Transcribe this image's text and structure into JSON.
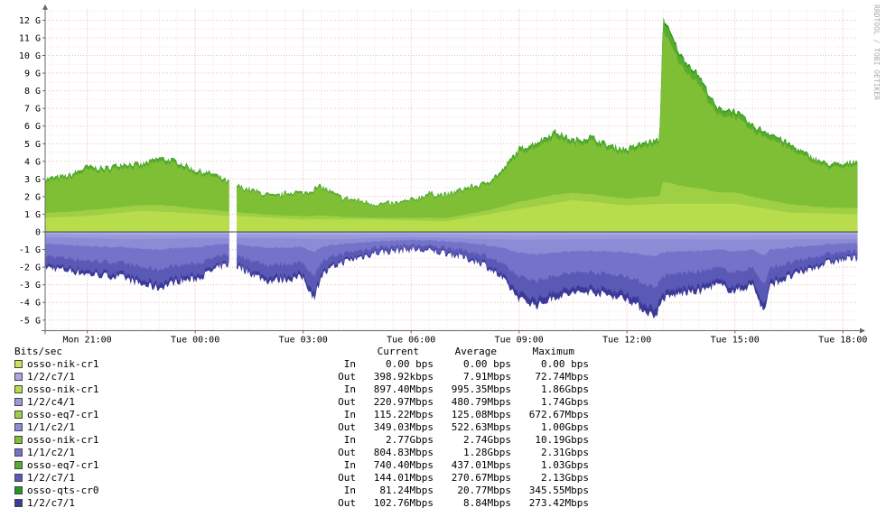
{
  "watermark": "RRDTOOL / TOBI OETIKER",
  "legend_header": {
    "unit": "Bits/sec",
    "current": "Current",
    "average": "Average",
    "maximum": "Maximum"
  },
  "legend": [
    {
      "name": "osso-nik-cr1",
      "dir": "In",
      "current": "0.00 bps",
      "average": "0.00 bps",
      "maximum": "0.00 bps",
      "color": "#cbe15a"
    },
    {
      "name": "1/2/c7/1",
      "dir": "Out",
      "current": "398.92kbps",
      "average": "7.91Mbps",
      "maximum": "72.74Mbps",
      "color": "#a9a8e8"
    },
    {
      "name": "osso-nik-cr1",
      "dir": "In",
      "current": "897.40Mbps",
      "average": "995.35Mbps",
      "maximum": "1.86Gbps",
      "color": "#b7dd4c"
    },
    {
      "name": "1/2/c4/1",
      "dir": "Out",
      "current": "220.97Mbps",
      "average": "480.79Mbps",
      "maximum": "1.74Gbps",
      "color": "#9a99dd"
    },
    {
      "name": "osso-eq7-cr1",
      "dir": "In",
      "current": "115.22Mbps",
      "average": "125.08Mbps",
      "maximum": "672.67Mbps",
      "color": "#9fcf44"
    },
    {
      "name": "1/1/c2/1",
      "dir": "Out",
      "current": "349.03Mbps",
      "average": "522.63Mbps",
      "maximum": "1.00Gbps",
      "color": "#8c8bd6"
    },
    {
      "name": "osso-nik-cr1",
      "dir": "In",
      "current": "2.77Gbps",
      "average": "2.74Gbps",
      "maximum": "10.19Gbps",
      "color": "#7fbf35"
    },
    {
      "name": "1/1/c2/1",
      "dir": "Out",
      "current": "804.83Mbps",
      "average": "1.28Gbps",
      "maximum": "2.31Gbps",
      "color": "#7472c9"
    },
    {
      "name": "osso-eq7-cr1",
      "dir": "In",
      "current": "740.40Mbps",
      "average": "437.01Mbps",
      "maximum": "1.03Gbps",
      "color": "#5aac2c"
    },
    {
      "name": "1/2/c7/1",
      "dir": "Out",
      "current": "144.01Mbps",
      "average": "270.67Mbps",
      "maximum": "2.13Gbps",
      "color": "#5b59b6"
    },
    {
      "name": "osso-qts-cr0",
      "dir": "In",
      "current": "81.24Mbps",
      "average": "20.77Mbps",
      "maximum": "345.55Mbps",
      "color": "#1e9a1e"
    },
    {
      "name": "1/2/c7/1",
      "dir": "Out",
      "current": "102.76Mbps",
      "average": "8.84Mbps",
      "maximum": "273.42Mbps",
      "color": "#3c3a99"
    }
  ],
  "chart_data": {
    "type": "area",
    "stacked": true,
    "ylabel": "",
    "yunit": "G",
    "ylim": [
      -5.6,
      12.6
    ],
    "yticks": [
      "12 G",
      "11 G",
      "10 G",
      "9 G",
      "8 G",
      "7 G",
      "6 G",
      "5 G",
      "4 G",
      "3 G",
      "2 G",
      "1 G",
      "0",
      "-1 G",
      "-2 G",
      "-3 G",
      "-4 G",
      "-5 G"
    ],
    "ytick_values": [
      12,
      11,
      10,
      9,
      8,
      7,
      6,
      5,
      4,
      3,
      2,
      1,
      0,
      -1,
      -2,
      -3,
      -4,
      -5
    ],
    "xrange_hours": [
      "Mon 19:50",
      "Tue 18:25"
    ],
    "xticks": [
      "Mon 21:00",
      "Tue 00:00",
      "Tue 03:00",
      "Tue 06:00",
      "Tue 09:00",
      "Tue 12:00",
      "Tue 15:00",
      "Tue 18:00"
    ],
    "xtick_hours": [
      21,
      24,
      27,
      30,
      33,
      36,
      39,
      42
    ],
    "grid": true,
    "gap_hours": [
      24.95,
      25.15
    ],
    "inbound_total_G": {
      "hours": [
        19.8,
        20.5,
        21.0,
        21.5,
        22.0,
        22.5,
        23.0,
        23.5,
        24.0,
        24.5,
        24.95,
        25.2,
        25.7,
        26.2,
        26.7,
        27.0,
        27.5,
        28.0,
        28.5,
        29.0,
        29.5,
        30.0,
        30.5,
        31.0,
        31.5,
        32.0,
        32.5,
        32.8,
        33.0,
        33.5,
        34.0,
        34.5,
        35.0,
        35.5,
        36.0,
        36.5,
        36.9,
        37.0,
        37.5,
        38.0,
        38.5,
        39.0,
        39.5,
        40.0,
        40.5,
        41.0,
        41.5,
        42.0,
        42.4
      ],
      "values": [
        3.0,
        3.2,
        3.7,
        3.6,
        3.9,
        3.8,
        4.2,
        4.0,
        3.5,
        3.3,
        2.8,
        2.6,
        2.3,
        2.0,
        2.3,
        2.2,
        2.6,
        2.0,
        1.8,
        1.6,
        1.6,
        1.8,
        2.2,
        2.1,
        2.5,
        2.7,
        3.4,
        4.2,
        4.7,
        5.1,
        5.7,
        5.2,
        5.4,
        4.9,
        4.7,
        5.1,
        5.2,
        12.2,
        10.0,
        8.9,
        7.0,
        6.9,
        6.0,
        5.6,
        5.0,
        4.4,
        3.9,
        3.8,
        4.1
      ]
    },
    "inbound_base_G": {
      "hours": [
        19.8,
        21.0,
        22.5,
        23.5,
        24.95,
        25.2,
        27.0,
        29.0,
        31.0,
        33.0,
        34.5,
        36.0,
        37.0,
        39.0,
        40.5,
        42.4
      ],
      "values": [
        0.8,
        0.9,
        1.2,
        1.1,
        0.9,
        0.9,
        0.7,
        0.7,
        0.6,
        1.3,
        1.8,
        1.5,
        1.6,
        1.6,
        1.1,
        1.0
      ]
    },
    "outbound_total_G": {
      "hours": [
        19.8,
        20.5,
        21.0,
        22.0,
        22.5,
        23.0,
        23.5,
        24.0,
        24.5,
        24.95,
        25.2,
        26.0,
        27.0,
        27.3,
        27.5,
        28.0,
        29.0,
        30.0,
        31.0,
        32.0,
        32.5,
        33.0,
        33.5,
        34.0,
        34.5,
        35.0,
        35.5,
        36.0,
        36.5,
        36.8,
        37.0,
        37.5,
        38.0,
        38.5,
        39.0,
        39.5,
        39.8,
        40.0,
        40.5,
        41.0,
        41.5,
        42.0,
        42.4
      ],
      "values": [
        -2.0,
        -2.2,
        -2.4,
        -2.6,
        -3.0,
        -3.2,
        -2.8,
        -2.7,
        -2.2,
        -1.8,
        -2.0,
        -2.8,
        -2.6,
        -3.8,
        -2.5,
        -1.8,
        -1.2,
        -1.0,
        -1.2,
        -1.8,
        -2.6,
        -3.8,
        -4.2,
        -3.7,
        -3.5,
        -3.4,
        -3.6,
        -3.8,
        -4.5,
        -4.8,
        -3.8,
        -3.5,
        -3.4,
        -3.0,
        -3.4,
        -3.0,
        -4.6,
        -3.0,
        -2.6,
        -2.2,
        -1.8,
        -1.6,
        -1.5
      ]
    },
    "outbound_base_G": {
      "hours": [
        19.8,
        22.0,
        24.95,
        25.2,
        28.0,
        30.0,
        33.0,
        36.0,
        39.0,
        42.4
      ],
      "values": [
        -0.3,
        -0.4,
        -0.35,
        -0.35,
        -0.4,
        -0.3,
        -0.45,
        -0.4,
        -0.45,
        -0.4
      ]
    }
  }
}
